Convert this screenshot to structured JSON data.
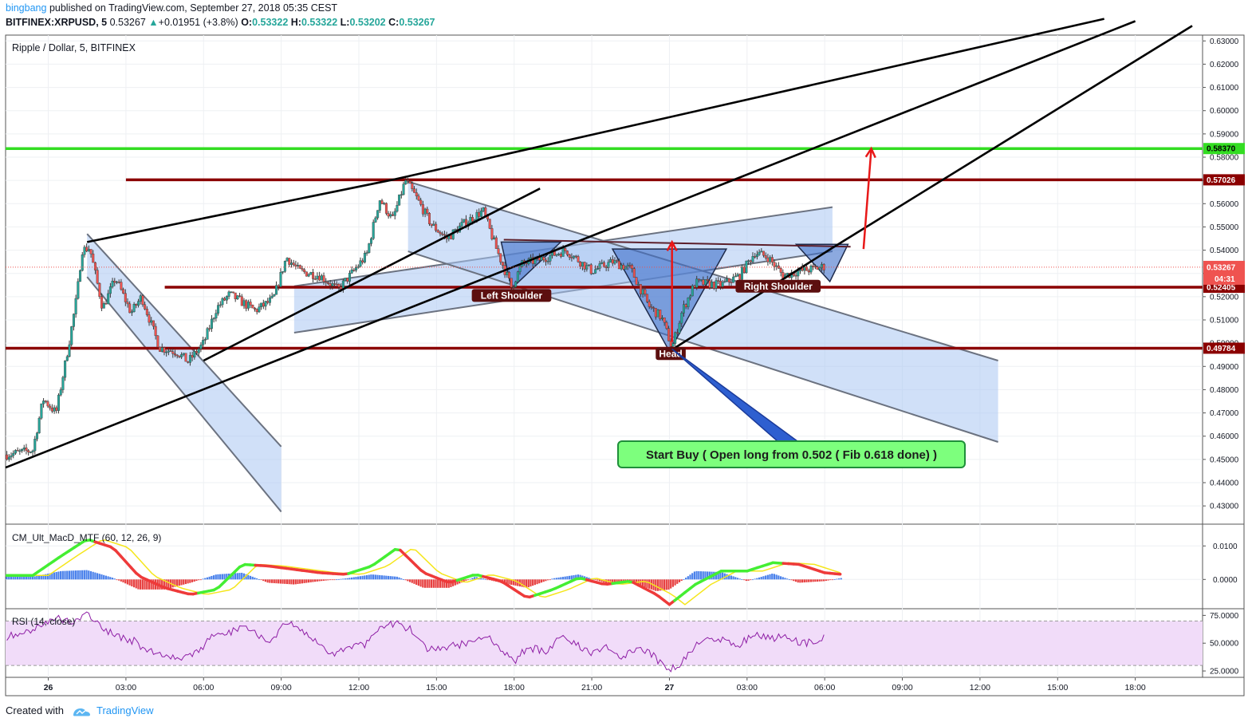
{
  "header": {
    "author": "bingbang",
    "published_text": "published on TradingView.com, September 27, 2018 05:35 CEST",
    "symbol": "BITFINEX:XRPUSD, 5",
    "last": "0.53267",
    "change_arrow": "▲",
    "change": "+0.01951 (+3.8%)",
    "o_label": "O:",
    "o": "0.53322",
    "h_label": "H:",
    "h": "0.53322",
    "l_label": "L:",
    "l": "0.53202",
    "c_label": "C:",
    "c": "0.53267"
  },
  "footer": {
    "created_with": "Created with",
    "brand": "TradingView"
  },
  "colors": {
    "up": "#26a69a",
    "down": "#ef5350",
    "green_line": "#33dd22",
    "red_line": "#8b0000",
    "channel_fill": "#a9c7f2",
    "pattern_fill": "#3f6fc9",
    "annotation_bg": "#5c0f0f",
    "callout_bg": "#7dff7d",
    "callout_border": "#1f8f3a",
    "rsi_band": "#f1dcf9",
    "rsi_line": "#8e1ea5"
  },
  "chart_data": [
    {
      "type": "candlestick",
      "title": "Ripple / Dollar, 5, BITFINEX",
      "y_ticks": [
        "0.63000",
        "0.62000",
        "0.61000",
        "0.60000",
        "0.59000",
        "0.58000",
        "0.57000",
        "0.56000",
        "0.55000",
        "0.54000",
        "0.53000",
        "0.52000",
        "0.51000",
        "0.50000",
        "0.49000",
        "0.48000",
        "0.47000",
        "0.46000",
        "0.45000",
        "0.44000",
        "0.43000"
      ],
      "y_tick_values": [
        0.63,
        0.62,
        0.61,
        0.6,
        0.59,
        0.58,
        0.57,
        0.56,
        0.55,
        0.54,
        0.53,
        0.52,
        0.51,
        0.5,
        0.49,
        0.48,
        0.47,
        0.46,
        0.45,
        0.44,
        0.43
      ],
      "ylim": [
        0.4225,
        0.6325
      ],
      "x_ticks": [
        "26",
        "03:00",
        "06:00",
        "09:00",
        "12:00",
        "15:00",
        "18:00",
        "21:00",
        "27",
        "03:00",
        "06:00",
        "09:00",
        "12:00",
        "15:00",
        "18:00"
      ],
      "x_tick_hours": [
        0,
        3,
        6,
        9,
        12,
        15,
        18,
        21,
        24,
        27,
        30,
        33,
        36,
        39,
        42
      ],
      "xlim_hours": [
        -1.65,
        44.6
      ],
      "price_path": [
        [
          -1.6,
          0.452
        ],
        [
          -0.6,
          0.454
        ],
        [
          -0.2,
          0.476
        ],
        [
          0.3,
          0.47
        ],
        [
          0.8,
          0.5
        ],
        [
          1.1,
          0.52
        ],
        [
          1.3,
          0.54
        ],
        [
          1.6,
          0.541
        ],
        [
          2.1,
          0.515
        ],
        [
          2.6,
          0.528
        ],
        [
          3.2,
          0.513
        ],
        [
          3.6,
          0.52
        ],
        [
          4.3,
          0.498
        ],
        [
          5.0,
          0.496
        ],
        [
          5.4,
          0.492
        ],
        [
          6.0,
          0.5
        ],
        [
          6.5,
          0.515
        ],
        [
          7.0,
          0.521
        ],
        [
          8.0,
          0.514
        ],
        [
          8.7,
          0.519
        ],
        [
          9.2,
          0.537
        ],
        [
          9.7,
          0.531
        ],
        [
          10.5,
          0.529
        ],
        [
          11.2,
          0.523
        ],
        [
          11.8,
          0.531
        ],
        [
          12.3,
          0.538
        ],
        [
          12.8,
          0.562
        ],
        [
          13.3,
          0.553
        ],
        [
          13.8,
          0.57
        ],
        [
          14.2,
          0.563
        ],
        [
          14.8,
          0.551
        ],
        [
          15.4,
          0.545
        ],
        [
          16.0,
          0.551
        ],
        [
          16.8,
          0.557
        ],
        [
          17.3,
          0.541
        ],
        [
          17.9,
          0.524
        ],
        [
          18.3,
          0.534
        ],
        [
          19.0,
          0.536
        ],
        [
          20.0,
          0.54
        ],
        [
          21.0,
          0.531
        ],
        [
          21.8,
          0.535
        ],
        [
          22.5,
          0.532
        ],
        [
          23.2,
          0.516
        ],
        [
          23.7,
          0.511
        ],
        [
          24.1,
          0.498
        ],
        [
          24.5,
          0.514
        ],
        [
          25.0,
          0.526
        ],
        [
          26.0,
          0.525
        ],
        [
          26.7,
          0.529
        ],
        [
          27.3,
          0.539
        ],
        [
          27.8,
          0.537
        ],
        [
          28.4,
          0.529
        ],
        [
          29.0,
          0.531
        ],
        [
          29.6,
          0.532
        ],
        [
          30.0,
          0.533
        ]
      ],
      "horizontal_levels": [
        {
          "price": 0.5837,
          "label": "0.58370",
          "color": "green"
        },
        {
          "price": 0.57026,
          "label": "0.57026",
          "color": "red"
        },
        {
          "price": 0.52405,
          "label": "0.52405",
          "color": "red"
        },
        {
          "price": 0.49784,
          "label": "0.49784",
          "color": "red"
        }
      ],
      "current_price": {
        "value": 0.53267,
        "label": "0.53267",
        "countdown": "04:31"
      },
      "annotations": [
        {
          "text": "Left Shoulder",
          "hour": 17.9,
          "price": 0.5205
        },
        {
          "text": "Head",
          "hour": 24.05,
          "price": 0.4955
        },
        {
          "text": "Right Shoulder",
          "hour": 28.2,
          "price": 0.5245
        }
      ],
      "callout": "Start Buy ( Open long from 0.502 ( Fib 0.618 done) )",
      "trendlines": [
        {
          "from": [
            -1.65,
            0.4465
          ],
          "to": [
            42.0,
            0.6385
          ]
        },
        {
          "from": [
            1.5,
            0.5435
          ],
          "to": [
            13.4,
            0.5705
          ]
        },
        {
          "from": [
            13.4,
            0.5705
          ],
          "to": [
            40.8,
            0.6395
          ]
        },
        {
          "from": [
            24.0,
            0.4965
          ],
          "to": [
            30.3,
            0.541
          ]
        },
        {
          "from": [
            30.3,
            0.541
          ],
          "to": [
            44.2,
            0.6365
          ]
        },
        {
          "from": [
            6.0,
            0.4925
          ],
          "to": [
            19.0,
            0.5665
          ]
        }
      ],
      "channels": [
        {
          "a1": [
            1.5,
            0.547
          ],
          "a2": [
            9.0,
            0.4555
          ],
          "b1": [
            1.5,
            0.5285
          ],
          "b2": [
            9.0,
            0.4275
          ]
        },
        {
          "a1": [
            9.5,
            0.5245
          ],
          "a2": [
            30.3,
            0.5585
          ],
          "b1": [
            9.5,
            0.5045
          ],
          "b2": [
            30.3,
            0.5395
          ]
        },
        {
          "a1": [
            13.9,
            0.5695
          ],
          "a2": [
            36.7,
            0.4925
          ],
          "b1": [
            13.9,
            0.5395
          ],
          "b2": [
            36.7,
            0.4575
          ]
        }
      ],
      "pattern_triangles": [
        [
          [
            17.5,
            0.5435
          ],
          [
            17.9,
            0.5235
          ],
          [
            19.8,
            0.5435
          ]
        ],
        [
          [
            21.8,
            0.5405
          ],
          [
            24.0,
            0.4965
          ],
          [
            26.2,
            0.5405
          ]
        ],
        [
          [
            28.9,
            0.5425
          ],
          [
            30.2,
            0.5265
          ],
          [
            30.9,
            0.5425
          ]
        ]
      ],
      "neckline": {
        "from": [
          17.6,
          0.5445
        ],
        "to": [
          31.0,
          0.5415
        ]
      },
      "targets": [
        {
          "from": [
            24.1,
            0.5005
          ],
          "to": [
            24.1,
            0.5435
          ]
        },
        {
          "from": [
            31.5,
            0.5405
          ],
          "to": [
            31.8,
            0.5837
          ]
        }
      ]
    },
    {
      "type": "histogram",
      "title": "CM_Ult_MacD_MTF (60, 12, 26, 9)",
      "y_ticks": [
        "0.0100",
        "0.0000"
      ],
      "y_tick_values": [
        0.01,
        0.0
      ],
      "ylim": [
        -0.0085,
        0.0165
      ],
      "macd_path": [
        [
          -1.6,
          0.0012
        ],
        [
          -0.6,
          0.0012
        ],
        [
          0.5,
          0.007
        ],
        [
          1.5,
          0.012
        ],
        [
          2.5,
          0.0095
        ],
        [
          3.5,
          0.001
        ],
        [
          4.5,
          -0.0025
        ],
        [
          5.5,
          -0.0045
        ],
        [
          6.5,
          -0.003
        ],
        [
          7.5,
          0.0045
        ],
        [
          8.5,
          0.004
        ],
        [
          9.5,
          0.003
        ],
        [
          10.5,
          0.002
        ],
        [
          11.5,
          0.0015
        ],
        [
          12.5,
          0.004
        ],
        [
          13.5,
          0.0095
        ],
        [
          14.5,
          0.002
        ],
        [
          15.5,
          -0.001
        ],
        [
          16.5,
          0.0015
        ],
        [
          17.5,
          -0.0005
        ],
        [
          18.5,
          -0.0055
        ],
        [
          19.5,
          -0.003
        ],
        [
          20.5,
          0.0005
        ],
        [
          21.5,
          -0.0015
        ],
        [
          22.5,
          -0.0005
        ],
        [
          23.5,
          -0.0045
        ],
        [
          24.0,
          -0.0075
        ],
        [
          25.0,
          -0.0015
        ],
        [
          26.0,
          0.0025
        ],
        [
          27.0,
          0.0025
        ],
        [
          28.0,
          0.005
        ],
        [
          29.0,
          0.0045
        ],
        [
          30.0,
          0.002
        ],
        [
          30.7,
          0.0015
        ]
      ],
      "hist_path": [
        [
          -1.6,
          0.0008
        ],
        [
          -0.6,
          0.0008
        ],
        [
          0.5,
          0.0025
        ],
        [
          1.5,
          0.0028
        ],
        [
          2.5,
          0.0005
        ],
        [
          3.5,
          -0.003
        ],
        [
          4.5,
          -0.003
        ],
        [
          5.5,
          -0.001
        ],
        [
          6.5,
          0.0015
        ],
        [
          7.5,
          0.002
        ],
        [
          8.5,
          -0.001
        ],
        [
          9.5,
          -0.0015
        ],
        [
          10.5,
          -0.0005
        ],
        [
          11.5,
          0.0003
        ],
        [
          12.5,
          0.0015
        ],
        [
          13.5,
          0.0008
        ],
        [
          14.5,
          -0.0025
        ],
        [
          15.5,
          -0.0025
        ],
        [
          16.5,
          0.0008
        ],
        [
          17.5,
          -0.001
        ],
        [
          18.5,
          -0.0025
        ],
        [
          19.5,
          0.0003
        ],
        [
          20.5,
          0.0015
        ],
        [
          21.5,
          -0.001
        ],
        [
          22.5,
          -0.0008
        ],
        [
          23.5,
          -0.0035
        ],
        [
          24.0,
          -0.003
        ],
        [
          25.0,
          0.0025
        ],
        [
          26.0,
          0.0022
        ],
        [
          27.0,
          -0.0005
        ],
        [
          28.0,
          0.0018
        ],
        [
          29.0,
          -0.001
        ],
        [
          30.0,
          -0.0005
        ],
        [
          30.7,
          0.0005
        ]
      ]
    },
    {
      "type": "line",
      "title": "RSI (14, close)",
      "y_ticks": [
        "75.0000",
        "50.0000",
        "25.0000"
      ],
      "y_tick_values": [
        75,
        50,
        25
      ],
      "ylim": [
        20,
        81
      ],
      "band": [
        30,
        70
      ],
      "rsi_path": [
        [
          -1.6,
          56
        ],
        [
          -0.8,
          60
        ],
        [
          -0.2,
          68
        ],
        [
          0.4,
          72
        ],
        [
          1.0,
          70
        ],
        [
          1.6,
          76
        ],
        [
          2.1,
          62
        ],
        [
          2.7,
          56
        ],
        [
          3.3,
          52
        ],
        [
          3.9,
          42
        ],
        [
          4.5,
          40
        ],
        [
          5.1,
          37
        ],
        [
          5.7,
          40
        ],
        [
          6.3,
          55
        ],
        [
          6.9,
          58
        ],
        [
          7.5,
          66
        ],
        [
          8.1,
          58
        ],
        [
          8.7,
          52
        ],
        [
          9.2,
          69
        ],
        [
          9.8,
          60
        ],
        [
          10.4,
          50
        ],
        [
          11.0,
          40
        ],
        [
          11.6,
          47
        ],
        [
          12.2,
          48
        ],
        [
          12.8,
          66
        ],
        [
          13.4,
          68
        ],
        [
          14.0,
          62
        ],
        [
          14.6,
          44
        ],
        [
          15.2,
          46
        ],
        [
          15.8,
          48
        ],
        [
          16.4,
          52
        ],
        [
          17.0,
          58
        ],
        [
          17.6,
          41
        ],
        [
          18.0,
          33
        ],
        [
          18.5,
          46
        ],
        [
          19.2,
          43
        ],
        [
          19.8,
          56
        ],
        [
          20.4,
          50
        ],
        [
          21.0,
          40
        ],
        [
          21.6,
          46
        ],
        [
          22.2,
          38
        ],
        [
          22.8,
          46
        ],
        [
          23.4,
          38
        ],
        [
          23.9,
          26
        ],
        [
          24.4,
          30
        ],
        [
          24.9,
          46
        ],
        [
          25.5,
          56
        ],
        [
          26.1,
          52
        ],
        [
          26.7,
          48
        ],
        [
          27.3,
          60
        ],
        [
          27.9,
          53
        ],
        [
          28.5,
          58
        ],
        [
          29.1,
          50
        ],
        [
          29.7,
          51
        ],
        [
          30.0,
          56
        ]
      ]
    }
  ]
}
